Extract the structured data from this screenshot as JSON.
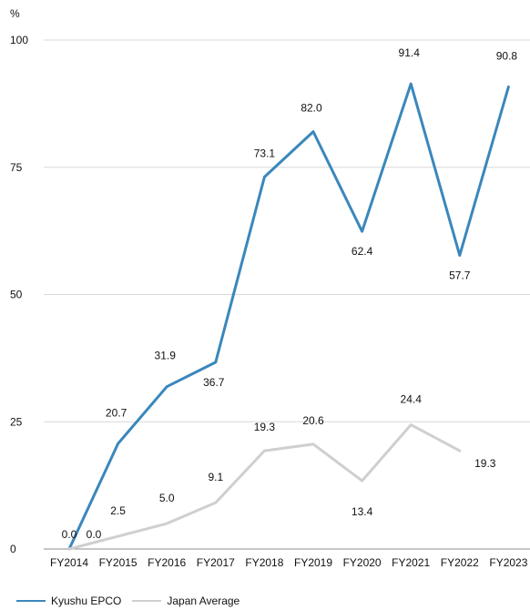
{
  "chart_data": {
    "type": "line",
    "title": "",
    "xlabel": "",
    "ylabel": "%",
    "ylim": [
      0,
      100
    ],
    "y_ticks": [
      "0",
      "25",
      "50",
      "75",
      "100"
    ],
    "grid": "horizontal",
    "legend_position": "bottom-left",
    "categories": [
      "FY2014",
      "FY2015",
      "FY2016",
      "FY2017",
      "FY2018",
      "FY2019",
      "FY2020",
      "FY2021",
      "FY2022",
      "FY2023"
    ],
    "series": [
      {
        "name": "Kyushu EPCO",
        "color": "#3a87bc",
        "values": [
          0.0,
          20.7,
          31.9,
          36.7,
          73.1,
          82.0,
          62.4,
          91.4,
          57.7,
          90.8
        ],
        "labels": [
          "0.0",
          "20.7",
          "31.9",
          "36.7",
          "73.1",
          "82.0",
          "62.4",
          "91.4",
          "57.7",
          "90.8"
        ]
      },
      {
        "name": "Japan Average",
        "color": "#cfcfcf",
        "values": [
          0.0,
          2.5,
          5.0,
          9.1,
          19.3,
          20.6,
          13.4,
          24.4,
          19.3,
          null
        ],
        "labels": [
          "0.0",
          "2.5",
          "5.0",
          "9.1",
          "19.3",
          "20.6",
          "13.4",
          "24.4",
          "19.3",
          ""
        ]
      }
    ]
  }
}
